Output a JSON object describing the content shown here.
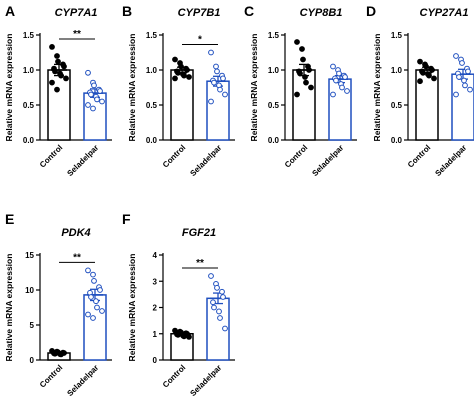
{
  "colors": {
    "control": "#000000",
    "treatment": "#1f4fbf",
    "marker_fill": "#ffffff"
  },
  "chart_data": [
    {
      "type": "bar",
      "letter": "A",
      "title": "CYP7A1",
      "ylabel": "Relative mRNA expression",
      "ylim": [
        0,
        1.5
      ],
      "yticks": [
        "0.0",
        "0.5",
        "1.0",
        "1.5"
      ],
      "categories": [
        "Control",
        "Seladelpar"
      ],
      "values": [
        1.0,
        0.67
      ],
      "errors": [
        0.08,
        0.06
      ],
      "points": [
        [
          1.33,
          1.2,
          1.12,
          1.08,
          1.05,
          1.02,
          0.98,
          0.95,
          0.92,
          0.88,
          0.82,
          0.72
        ],
        [
          0.96,
          0.82,
          0.78,
          0.72,
          0.7,
          0.68,
          0.65,
          0.62,
          0.58,
          0.55,
          0.5,
          0.45
        ]
      ],
      "significance": "**"
    },
    {
      "type": "bar",
      "letter": "B",
      "title": "CYP7B1",
      "ylabel": "Relative mRNA expression",
      "ylim": [
        0,
        1.5
      ],
      "yticks": [
        "0.0",
        "0.5",
        "1.0",
        "1.5"
      ],
      "categories": [
        "Control",
        "Seladelpar"
      ],
      "values": [
        1.0,
        0.84
      ],
      "errors": [
        0.04,
        0.07
      ],
      "points": [
        [
          1.15,
          1.1,
          1.05,
          1.02,
          1.0,
          0.98,
          0.96,
          0.94,
          0.92,
          0.9,
          0.88
        ],
        [
          1.25,
          1.05,
          0.98,
          0.92,
          0.88,
          0.85,
          0.82,
          0.78,
          0.72,
          0.65,
          0.55
        ]
      ],
      "significance": "*"
    },
    {
      "type": "bar",
      "letter": "C",
      "title": "CYP8B1",
      "ylabel": "Relative mRNA expression",
      "ylim": [
        0,
        1.5
      ],
      "yticks": [
        "0.0",
        "0.5",
        "1.0",
        "1.5"
      ],
      "categories": [
        "Control",
        "Seladelpar"
      ],
      "values": [
        1.0,
        0.87
      ],
      "errors": [
        0.08,
        0.05
      ],
      "points": [
        [
          1.4,
          1.3,
          1.15,
          1.05,
          1.0,
          0.98,
          0.95,
          0.9,
          0.82,
          0.75,
          0.65
        ],
        [
          1.05,
          1.0,
          0.95,
          0.92,
          0.9,
          0.88,
          0.85,
          0.8,
          0.75,
          0.7,
          0.65
        ]
      ],
      "significance": ""
    },
    {
      "type": "bar",
      "letter": "D",
      "title": "CYP27A1",
      "ylabel": "Relative mRNA expression",
      "ylim": [
        0,
        1.5
      ],
      "yticks": [
        "0.0",
        "0.5",
        "1.0",
        "1.5"
      ],
      "categories": [
        "Control",
        "Seladelpar"
      ],
      "values": [
        1.0,
        0.94
      ],
      "errors": [
        0.04,
        0.07
      ],
      "points": [
        [
          1.12,
          1.08,
          1.05,
          1.02,
          1.0,
          0.98,
          0.96,
          0.94,
          0.92,
          0.88,
          0.84
        ],
        [
          1.2,
          1.15,
          1.1,
          1.02,
          0.98,
          0.95,
          0.9,
          0.85,
          0.78,
          0.72,
          0.65
        ]
      ],
      "significance": ""
    },
    {
      "type": "bar",
      "letter": "E",
      "title": "PDK4",
      "ylabel": "Relative mRNA expression",
      "ylim": [
        0,
        15
      ],
      "yticks": [
        "0",
        "5",
        "10",
        "15"
      ],
      "categories": [
        "Control",
        "Seladelpar"
      ],
      "values": [
        1.0,
        9.3
      ],
      "errors": [
        0.1,
        0.8
      ],
      "points": [
        [
          1.3,
          1.2,
          1.1,
          1.05,
          1.0,
          0.95,
          0.9,
          0.85,
          0.8
        ],
        [
          12.8,
          12.2,
          11.3,
          10.4,
          10.0,
          9.6,
          9.0,
          8.4,
          7.5,
          7.0,
          6.5,
          6.0
        ]
      ],
      "significance": "**"
    },
    {
      "type": "bar",
      "letter": "F",
      "title": "FGF21",
      "ylabel": "Relative mRNA expression",
      "ylim": [
        0,
        4
      ],
      "yticks": [
        "0",
        "1",
        "2",
        "3",
        "4"
      ],
      "categories": [
        "Control",
        "Seladelpar"
      ],
      "values": [
        1.0,
        2.35
      ],
      "errors": [
        0.04,
        0.2
      ],
      "points": [
        [
          1.12,
          1.08,
          1.05,
          1.02,
          1.0,
          0.98,
          0.96,
          0.93,
          0.9,
          0.88
        ],
        [
          3.2,
          2.9,
          2.75,
          2.6,
          2.4,
          2.2,
          2.0,
          1.85,
          1.6,
          1.2
        ]
      ],
      "significance": "**"
    }
  ]
}
